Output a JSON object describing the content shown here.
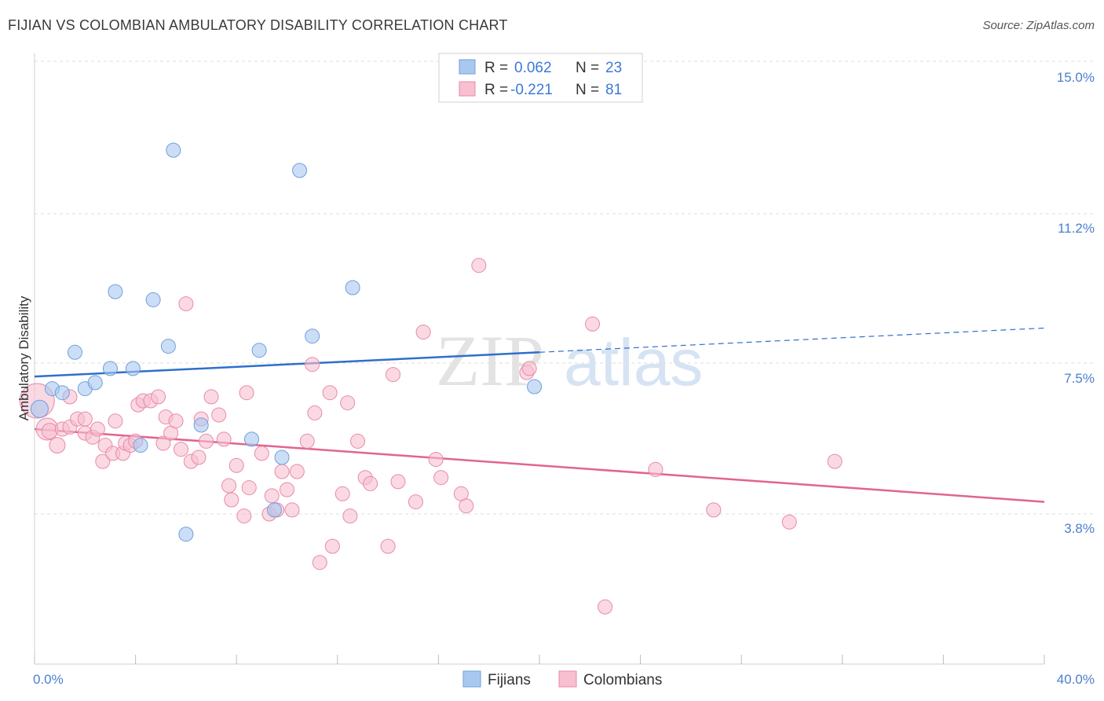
{
  "title": "FIJIAN VS COLOMBIAN AMBULATORY DISABILITY CORRELATION CHART",
  "source": "Source: ZipAtlas.com",
  "watermark": {
    "zip": "ZIP",
    "atlas": "atlas"
  },
  "colors": {
    "fijians_fill": "#a9c8f0",
    "fijians_stroke": "#6f9fdc",
    "fijians_line": "#2f6fcc",
    "colombians_fill": "#f7bfd0",
    "colombians_stroke": "#e98aa8",
    "colombians_line": "#e2648f",
    "grid": "#dddddd",
    "tick_text": "#4a7fd0"
  },
  "legend": {
    "rows": [
      {
        "r_label": "R =",
        "r_value": "0.062",
        "n_label": "N =",
        "n_value": "23"
      },
      {
        "r_label": "R =",
        "r_value": "-0.221",
        "n_label": "N =",
        "n_value": "81"
      }
    ]
  },
  "chart_data": {
    "type": "scatter",
    "title": "FIJIAN VS COLOMBIAN AMBULATORY DISABILITY CORRELATION CHART",
    "xlabel": "",
    "ylabel": "Ambulatory Disability",
    "xlim": [
      0,
      40
    ],
    "ylim": [
      0,
      15.5
    ],
    "x_tick_labels": [
      "0.0%",
      "40.0%"
    ],
    "y_ticks": [
      {
        "value": 15.0,
        "label": "15.0%"
      },
      {
        "value": 11.2,
        "label": "11.2%"
      },
      {
        "value": 7.5,
        "label": "7.5%"
      },
      {
        "value": 3.8,
        "label": "3.8%"
      }
    ],
    "series": [
      {
        "name": "Fijians",
        "trend": {
          "x0": 0,
          "y0": 7.2,
          "x1": 20,
          "y1": 7.8,
          "dashed_to_x": 40,
          "dashed_to_y": 8.4
        },
        "points": [
          [
            0.2,
            6.4,
            11
          ],
          [
            0.7,
            6.9,
            9
          ],
          [
            1.1,
            6.8,
            9
          ],
          [
            1.6,
            7.8,
            9
          ],
          [
            2.0,
            6.9,
            9
          ],
          [
            2.4,
            7.05,
            9
          ],
          [
            3.0,
            7.4,
            9
          ],
          [
            3.2,
            9.3,
            9
          ],
          [
            3.9,
            7.4,
            9
          ],
          [
            4.2,
            5.5,
            9
          ],
          [
            4.7,
            9.1,
            9
          ],
          [
            5.3,
            7.95,
            9
          ],
          [
            5.5,
            12.8,
            9
          ],
          [
            6.0,
            3.3,
            9
          ],
          [
            6.6,
            6.0,
            9
          ],
          [
            8.6,
            5.65,
            9
          ],
          [
            8.9,
            7.85,
            9
          ],
          [
            9.5,
            3.9,
            9
          ],
          [
            9.8,
            5.2,
            9
          ],
          [
            10.5,
            12.3,
            9
          ],
          [
            11.0,
            8.2,
            9
          ],
          [
            12.6,
            9.4,
            9
          ],
          [
            19.8,
            6.95,
            9
          ]
        ]
      },
      {
        "name": "Colombians",
        "trend": {
          "x0": 0,
          "y0": 5.9,
          "x1": 40,
          "y1": 4.1
        },
        "points": [
          [
            0.1,
            6.6,
            22
          ],
          [
            0.5,
            5.9,
            14
          ],
          [
            0.6,
            5.85,
            10
          ],
          [
            0.9,
            5.5,
            10
          ],
          [
            1.1,
            5.9,
            9
          ],
          [
            1.4,
            5.95,
            9
          ],
          [
            1.4,
            6.7,
            9
          ],
          [
            1.7,
            6.15,
            9
          ],
          [
            2.0,
            6.15,
            9
          ],
          [
            2.0,
            5.8,
            9
          ],
          [
            2.3,
            5.7,
            9
          ],
          [
            2.5,
            5.9,
            9
          ],
          [
            2.7,
            5.1,
            9
          ],
          [
            2.8,
            5.5,
            9
          ],
          [
            3.1,
            5.3,
            9
          ],
          [
            3.2,
            6.1,
            9
          ],
          [
            3.5,
            5.3,
            9
          ],
          [
            3.6,
            5.55,
            9
          ],
          [
            3.8,
            5.5,
            9
          ],
          [
            4.0,
            5.6,
            9
          ],
          [
            4.1,
            6.5,
            9
          ],
          [
            4.3,
            6.6,
            9
          ],
          [
            4.6,
            6.6,
            9
          ],
          [
            4.9,
            6.7,
            9
          ],
          [
            5.1,
            5.55,
            9
          ],
          [
            5.2,
            6.2,
            9
          ],
          [
            5.4,
            5.8,
            9
          ],
          [
            5.6,
            6.1,
            9
          ],
          [
            5.8,
            5.4,
            9
          ],
          [
            6.0,
            9.0,
            9
          ],
          [
            6.2,
            5.1,
            9
          ],
          [
            6.5,
            5.2,
            9
          ],
          [
            6.6,
            6.15,
            9
          ],
          [
            6.8,
            5.6,
            9
          ],
          [
            7.0,
            6.7,
            9
          ],
          [
            7.3,
            6.25,
            9
          ],
          [
            7.5,
            5.65,
            9
          ],
          [
            7.7,
            4.5,
            9
          ],
          [
            7.8,
            4.15,
            9
          ],
          [
            8.0,
            5.0,
            9
          ],
          [
            8.3,
            3.75,
            9
          ],
          [
            8.4,
            6.8,
            9
          ],
          [
            8.5,
            4.45,
            9
          ],
          [
            9.0,
            5.3,
            9
          ],
          [
            9.3,
            3.8,
            9
          ],
          [
            9.4,
            4.25,
            9
          ],
          [
            9.6,
            3.9,
            9
          ],
          [
            9.8,
            4.85,
            9
          ],
          [
            10.0,
            4.4,
            9
          ],
          [
            10.2,
            3.9,
            9
          ],
          [
            10.4,
            4.85,
            9
          ],
          [
            10.8,
            5.6,
            9
          ],
          [
            11.0,
            7.5,
            9
          ],
          [
            11.1,
            6.3,
            9
          ],
          [
            11.3,
            2.6,
            9
          ],
          [
            11.7,
            6.8,
            9
          ],
          [
            11.8,
            3.0,
            9
          ],
          [
            12.2,
            4.3,
            9
          ],
          [
            12.4,
            6.55,
            9
          ],
          [
            12.5,
            3.75,
            9
          ],
          [
            12.8,
            5.6,
            9
          ],
          [
            13.1,
            4.7,
            9
          ],
          [
            13.3,
            4.55,
            9
          ],
          [
            14.0,
            3.0,
            9
          ],
          [
            14.2,
            7.25,
            9
          ],
          [
            14.4,
            4.6,
            9
          ],
          [
            15.1,
            4.1,
            9
          ],
          [
            15.4,
            8.3,
            9
          ],
          [
            15.9,
            5.15,
            9
          ],
          [
            16.1,
            4.7,
            9
          ],
          [
            16.9,
            4.3,
            9
          ],
          [
            17.1,
            4.0,
            9
          ],
          [
            17.6,
            9.95,
            9
          ],
          [
            19.5,
            7.3,
            9
          ],
          [
            22.1,
            8.5,
            9
          ],
          [
            22.6,
            1.5,
            9
          ],
          [
            24.6,
            4.9,
            9
          ],
          [
            26.9,
            3.9,
            9
          ],
          [
            29.9,
            3.6,
            9
          ],
          [
            31.7,
            5.1,
            9
          ],
          [
            19.6,
            7.4,
            9
          ]
        ]
      }
    ],
    "legend_placement": "top-center",
    "grid": true
  }
}
